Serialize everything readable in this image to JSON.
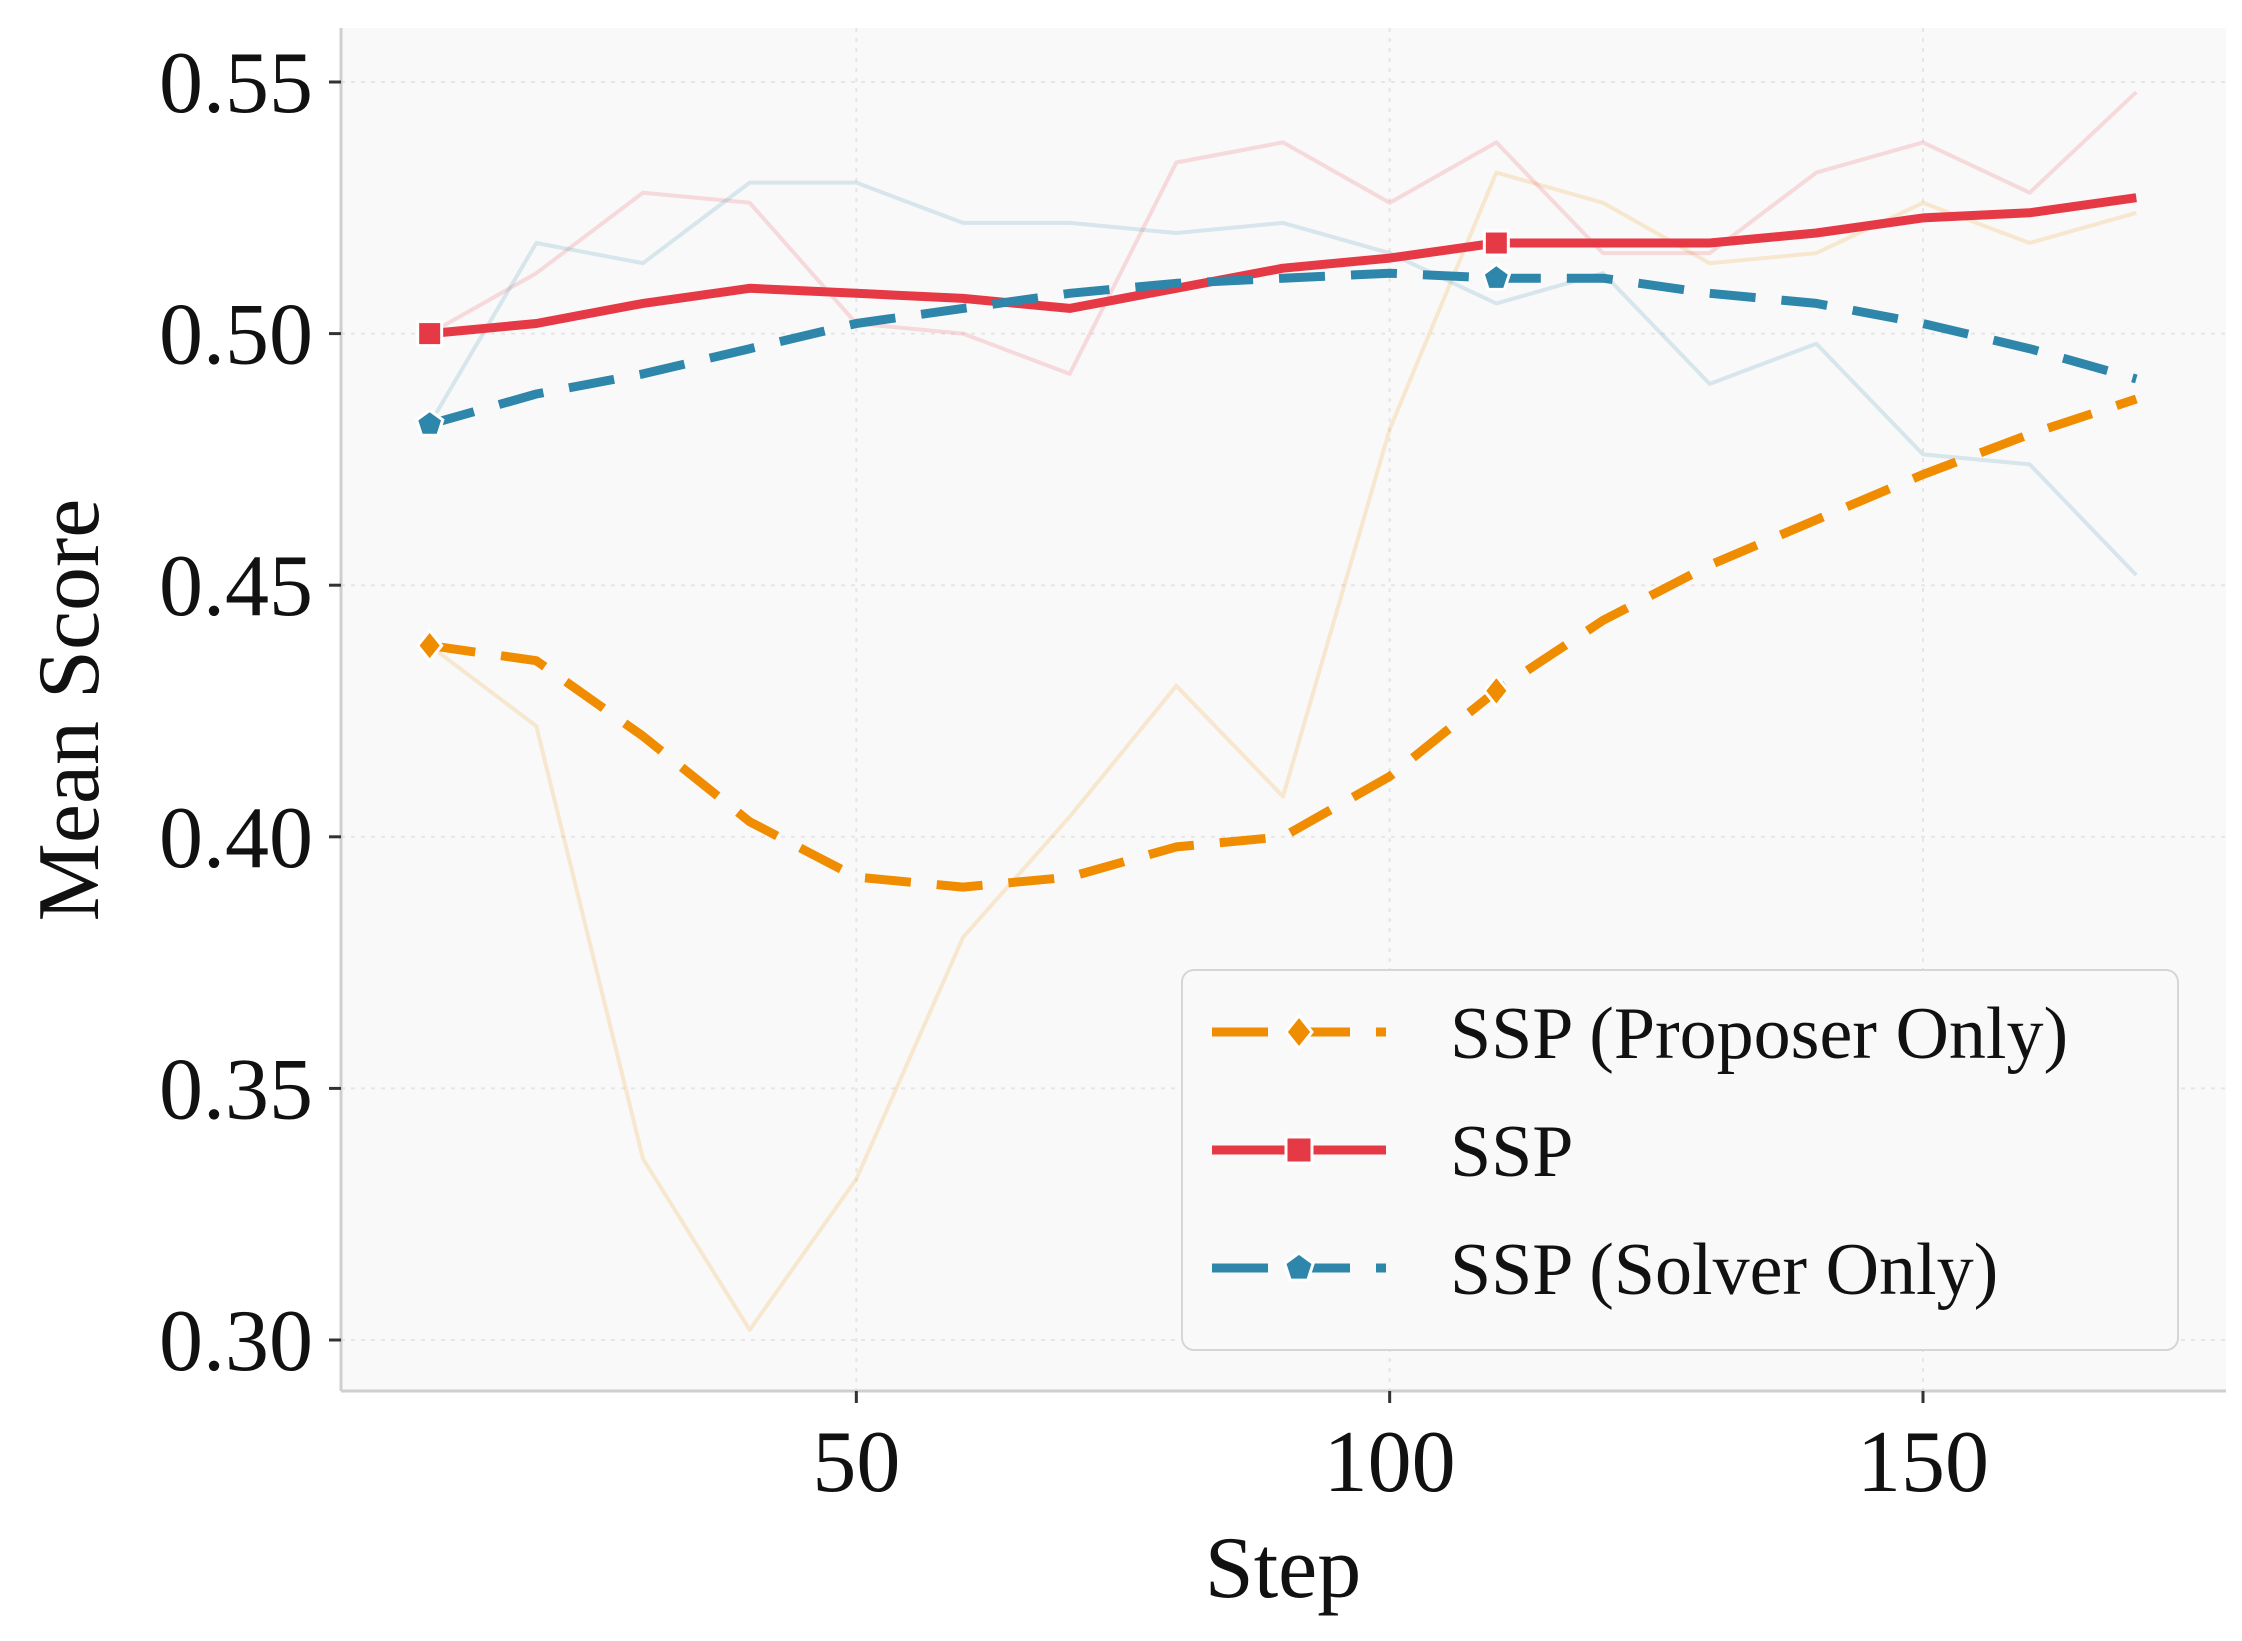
{
  "chart_data": {
    "type": "line",
    "title": "",
    "xlabel": "Step",
    "ylabel": "Mean Score",
    "xlim": [
      0,
      178
    ],
    "ylim": [
      0.29,
      0.56
    ],
    "xticks": [
      50,
      100,
      150
    ],
    "xtick_labels": [
      "50",
      "100",
      "150"
    ],
    "yticks": [
      0.3,
      0.35,
      0.4,
      0.45,
      0.5,
      0.55
    ],
    "ytick_labels": [
      "0.30",
      "0.35",
      "0.40",
      "0.45",
      "0.50",
      "0.55"
    ],
    "grid": true,
    "legend_position": "lower-right",
    "x": [
      10,
      20,
      30,
      40,
      50,
      60,
      70,
      80,
      90,
      100,
      110,
      120,
      130,
      140,
      150,
      160,
      170
    ],
    "series": [
      {
        "name": "SSP (Proposer Only)",
        "color": "#F08C00",
        "line_style": "dashed",
        "marker": "diamond",
        "marker_steps": [
          10,
          110
        ],
        "smoothed": [
          0.438,
          0.435,
          0.42,
          0.403,
          0.392,
          0.39,
          0.392,
          0.398,
          0.4,
          0.412,
          0.429,
          0.443,
          0.454,
          0.463,
          0.472,
          0.48,
          0.487
        ],
        "raw": [
          0.438,
          0.422,
          0.336,
          0.302,
          0.332,
          0.38,
          0.404,
          0.43,
          0.408,
          0.481,
          0.532,
          0.526,
          0.514,
          0.516,
          0.526,
          0.518,
          0.524
        ]
      },
      {
        "name": "SSP",
        "color": "#E63946",
        "line_style": "solid",
        "marker": "square",
        "marker_steps": [
          10,
          110
        ],
        "smoothed": [
          0.5,
          0.502,
          0.506,
          0.509,
          0.508,
          0.507,
          0.505,
          0.509,
          0.513,
          0.515,
          0.518,
          0.518,
          0.518,
          0.52,
          0.523,
          0.524,
          0.527
        ],
        "raw": [
          0.5,
          0.512,
          0.528,
          0.526,
          0.502,
          0.5,
          0.492,
          0.534,
          0.538,
          0.526,
          0.538,
          0.516,
          0.516,
          0.532,
          0.538,
          0.528,
          0.548
        ]
      },
      {
        "name": "SSP (Solver Only)",
        "color": "#2E86AB",
        "line_style": "dashed",
        "marker": "pentagon",
        "marker_steps": [
          10,
          110
        ],
        "smoothed": [
          0.482,
          0.488,
          0.492,
          0.497,
          0.502,
          0.505,
          0.508,
          0.51,
          0.511,
          0.512,
          0.511,
          0.511,
          0.508,
          0.506,
          0.502,
          0.497,
          0.491
        ],
        "raw": [
          0.482,
          0.518,
          0.514,
          0.53,
          0.53,
          0.522,
          0.522,
          0.52,
          0.522,
          0.516,
          0.506,
          0.512,
          0.49,
          0.498,
          0.476,
          0.474,
          0.452
        ]
      }
    ]
  }
}
